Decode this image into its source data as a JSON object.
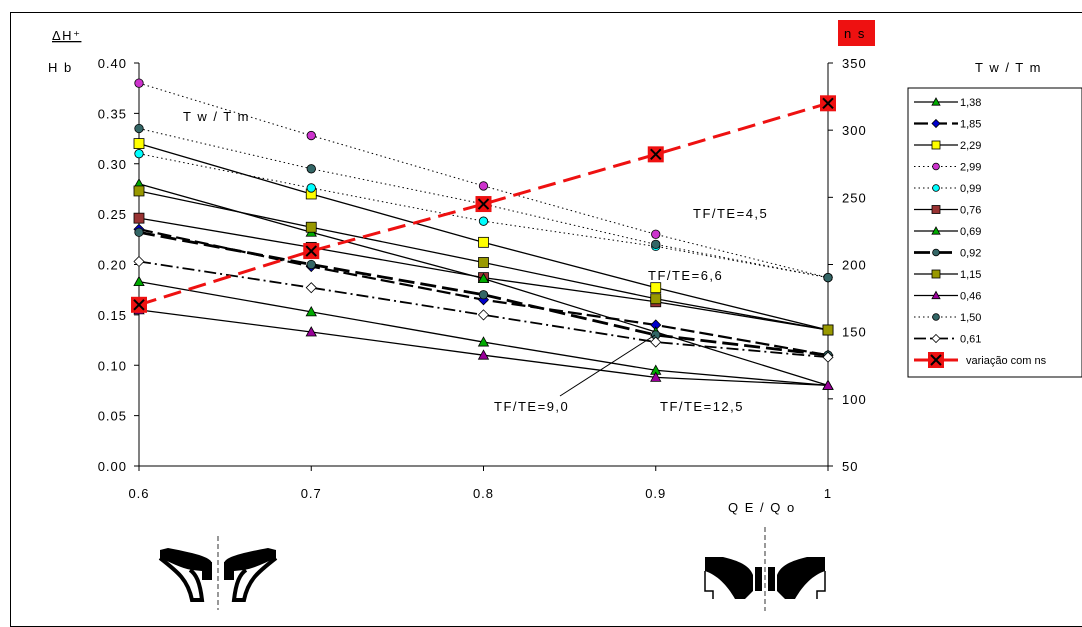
{
  "chart_data": {
    "type": "line",
    "y_title_top": "ΔH⁺",
    "y_title_bottom": "H b",
    "xlabel": "Q E / Q o",
    "y2label": "n s",
    "x_ticks": [
      "0.6",
      "0.7",
      "0.8",
      "0.9",
      "1"
    ],
    "y_ticks": [
      "0.00",
      "0.05",
      "0.10",
      "0.15",
      "0.20",
      "0.25",
      "0.30",
      "0.35",
      "0.40"
    ],
    "y2_ticks": [
      "50",
      "100",
      "150",
      "200",
      "250",
      "300",
      "350"
    ],
    "xlim": [
      0.6,
      1.0
    ],
    "ylim": [
      0,
      0.4
    ],
    "y2lim": [
      50,
      350
    ],
    "legend_title": "T w / T m",
    "legend_position": "right",
    "grid": false,
    "annotations": [
      "T w / T m",
      "TF/TE=4,5",
      "TF/TE=6,6",
      "TF/TE=9,0",
      "TF/TE=12,5"
    ],
    "x": [
      0.6,
      0.7,
      0.8,
      0.9,
      1.0
    ],
    "series": [
      {
        "name": "1,38",
        "values": [
          0.183,
          0.153,
          0.123,
          0.095,
          0.08
        ],
        "color": "#00aa00",
        "marker": "tri",
        "dash": "solid",
        "width": 1.3
      },
      {
        "name": "1,85",
        "values": [
          0.235,
          0.198,
          0.165,
          0.14,
          0.11
        ],
        "color": "#0000cc",
        "marker": "diamond",
        "dash": "long",
        "width": 2.2
      },
      {
        "name": "2,29",
        "values": [
          0.32,
          0.27,
          0.222,
          0.177,
          0.135
        ],
        "color": "#ffff00",
        "marker": "square",
        "dash": "solid",
        "width": 1.3
      },
      {
        "name": "2,99",
        "values": [
          0.38,
          0.328,
          0.278,
          0.23,
          0.187
        ],
        "color": "#cc33cc",
        "marker": "circle",
        "dash": "dot",
        "width": 1.0
      },
      {
        "name": "0,99",
        "values": [
          0.31,
          0.276,
          0.243,
          0.218,
          0.187
        ],
        "color": "#00ffff",
        "marker": "circle",
        "dash": "dot",
        "width": 1.0
      },
      {
        "name": "0,76",
        "values": [
          0.246,
          0.217,
          0.187,
          0.163,
          0.135
        ],
        "color": "#993333",
        "marker": "square",
        "dash": "solid",
        "width": 1.3
      },
      {
        "name": "0,69",
        "values": [
          0.28,
          0.232,
          0.186,
          0.133,
          0.08
        ],
        "color": "#00aa00",
        "marker": "tri",
        "dash": "solid",
        "width": 1.3
      },
      {
        "name": "0,92",
        "values": [
          0.232,
          0.2,
          0.17,
          0.13,
          0.11
        ],
        "color": "#336666",
        "marker": "circle",
        "dash": "longthick",
        "width": 2.8
      },
      {
        "name": "1,15",
        "values": [
          0.273,
          0.237,
          0.202,
          0.166,
          0.135
        ],
        "color": "#999900",
        "marker": "square",
        "dash": "solid",
        "width": 1.3
      },
      {
        "name": "0,46",
        "values": [
          0.155,
          0.133,
          0.11,
          0.088,
          0.08
        ],
        "color": "#990099",
        "marker": "tri",
        "dash": "solid",
        "width": 1.3
      },
      {
        "name": "1,50",
        "values": [
          0.335,
          0.295,
          0.26,
          0.22,
          0.187
        ],
        "color": "#336666",
        "marker": "circle",
        "dash": "dot",
        "width": 1.0
      },
      {
        "name": "0,61",
        "values": [
          0.203,
          0.177,
          0.15,
          0.123,
          0.108
        ],
        "color": "#ffffff",
        "marker": "diamond",
        "dash": "dashdot",
        "width": 1.8
      }
    ],
    "ns_series": {
      "name": "variação com ns",
      "axis": "right",
      "values": [
        170,
        210,
        245,
        282,
        320
      ],
      "color": "#ee1111",
      "marker": "xsquare",
      "dash": "redlong",
      "width": 3
    }
  }
}
